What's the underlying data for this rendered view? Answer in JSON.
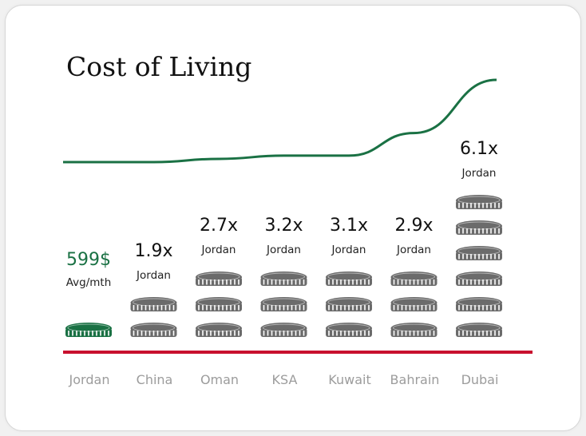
{
  "chart_data": {
    "type": "bar",
    "title": "Cost of Living",
    "baseline_label": "Jordan",
    "categories": [
      "Jordan",
      "China",
      "Oman",
      "KSA",
      "Kuwait",
      "Bahrain",
      "Dubai"
    ],
    "values": [
      1,
      1.9,
      2.7,
      3.2,
      3.1,
      2.9,
      6.1
    ],
    "multiplier_labels": [
      "",
      "1.9x",
      "2.7x",
      "3.2x",
      "3.1x",
      "2.9x",
      "6.1x"
    ],
    "coin_counts": [
      1,
      2,
      3,
      3,
      3,
      3,
      6
    ],
    "base_value": "599$",
    "base_sublabel": "Avg/mth",
    "trend_line": [
      1,
      1,
      1.2,
      1.4,
      1.4,
      2.8,
      6.1
    ]
  },
  "colors": {
    "accent": "#1a7144",
    "coin": "#6b6b6b",
    "baseline": "#c8102e",
    "category_text": "#9c9c9c"
  }
}
